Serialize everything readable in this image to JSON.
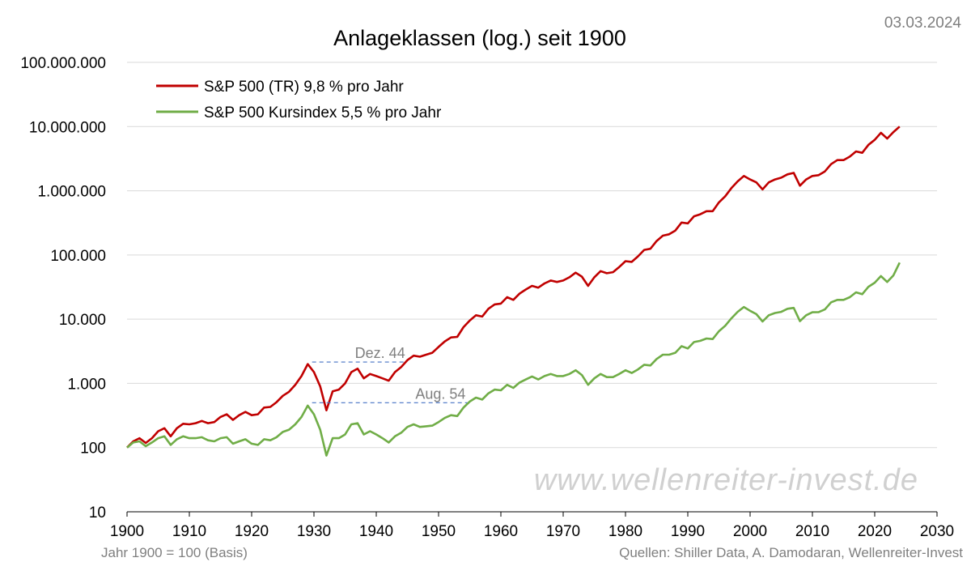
{
  "date": "03.03.2024",
  "footer": {
    "left": "Jahr 1900 = 100 (Basis)",
    "right": "Quellen: Shiller Data, A. Damodaran, Wellenreiter-Invest"
  },
  "watermark": "www.wellenreiter-invest.de",
  "chart_data": {
    "type": "line",
    "title": "Anlageklassen (log.) seit 1900",
    "xlabel": "",
    "ylabel": "",
    "yscale": "log",
    "xlim": [
      1900,
      2030
    ],
    "ylim": [
      10,
      100000000
    ],
    "grid": "horizontal",
    "legend_position": "top-left",
    "x_ticks": [
      1900,
      1910,
      1920,
      1930,
      1940,
      1950,
      1960,
      1970,
      1980,
      1990,
      2000,
      2010,
      2020,
      2030
    ],
    "x_tick_labels": [
      "1900",
      "1910",
      "1920",
      "1930",
      "1940",
      "1950",
      "1960",
      "1970",
      "1980",
      "1990",
      "2000",
      "2010",
      "2020",
      "2030"
    ],
    "y_ticks": [
      10,
      100,
      1000,
      10000,
      100000,
      1000000,
      10000000,
      100000000
    ],
    "y_tick_labels": [
      "10",
      "100",
      "1.000",
      "10.000",
      "100.000",
      "1.000.000",
      "10.000.000",
      "100.000.000"
    ],
    "series": [
      {
        "name": "S&P 500 (TR) 9,8 % pro Jahr",
        "color": "#c00000",
        "points": [
          [
            1900,
            100
          ],
          [
            1901,
            125
          ],
          [
            1902,
            140
          ],
          [
            1903,
            118
          ],
          [
            1904,
            140
          ],
          [
            1905,
            180
          ],
          [
            1906,
            200
          ],
          [
            1907,
            150
          ],
          [
            1908,
            200
          ],
          [
            1909,
            235
          ],
          [
            1910,
            230
          ],
          [
            1911,
            240
          ],
          [
            1912,
            260
          ],
          [
            1913,
            240
          ],
          [
            1914,
            250
          ],
          [
            1915,
            300
          ],
          [
            1916,
            330
          ],
          [
            1917,
            270
          ],
          [
            1918,
            320
          ],
          [
            1919,
            360
          ],
          [
            1920,
            320
          ],
          [
            1921,
            330
          ],
          [
            1922,
            420
          ],
          [
            1923,
            430
          ],
          [
            1924,
            510
          ],
          [
            1925,
            640
          ],
          [
            1926,
            740
          ],
          [
            1927,
            950
          ],
          [
            1928,
            1300
          ],
          [
            1929,
            2000
          ],
          [
            1930,
            1500
          ],
          [
            1931,
            900
          ],
          [
            1932,
            380
          ],
          [
            1933,
            750
          ],
          [
            1934,
            800
          ],
          [
            1935,
            1000
          ],
          [
            1936,
            1500
          ],
          [
            1937,
            1700
          ],
          [
            1938,
            1200
          ],
          [
            1939,
            1400
          ],
          [
            1940,
            1300
          ],
          [
            1941,
            1200
          ],
          [
            1942,
            1100
          ],
          [
            1943,
            1500
          ],
          [
            1944,
            1800
          ],
          [
            1945,
            2300
          ],
          [
            1946,
            2700
          ],
          [
            1947,
            2600
          ],
          [
            1948,
            2800
          ],
          [
            1949,
            3000
          ],
          [
            1950,
            3700
          ],
          [
            1951,
            4500
          ],
          [
            1952,
            5200
          ],
          [
            1953,
            5300
          ],
          [
            1954,
            7500
          ],
          [
            1955,
            9500
          ],
          [
            1956,
            11500
          ],
          [
            1957,
            11000
          ],
          [
            1958,
            14500
          ],
          [
            1959,
            17000
          ],
          [
            1960,
            17500
          ],
          [
            1961,
            22000
          ],
          [
            1962,
            20000
          ],
          [
            1963,
            25000
          ],
          [
            1964,
            29000
          ],
          [
            1965,
            33000
          ],
          [
            1966,
            31000
          ],
          [
            1967,
            36000
          ],
          [
            1968,
            40000
          ],
          [
            1969,
            38000
          ],
          [
            1970,
            40000
          ],
          [
            1971,
            45000
          ],
          [
            1972,
            53000
          ],
          [
            1973,
            46000
          ],
          [
            1974,
            33000
          ],
          [
            1975,
            45000
          ],
          [
            1976,
            56000
          ],
          [
            1977,
            52000
          ],
          [
            1978,
            54000
          ],
          [
            1979,
            65000
          ],
          [
            1980,
            80000
          ],
          [
            1981,
            78000
          ],
          [
            1982,
            95000
          ],
          [
            1983,
            120000
          ],
          [
            1984,
            125000
          ],
          [
            1985,
            165000
          ],
          [
            1986,
            200000
          ],
          [
            1987,
            210000
          ],
          [
            1988,
            240000
          ],
          [
            1989,
            320000
          ],
          [
            1990,
            310000
          ],
          [
            1991,
            400000
          ],
          [
            1992,
            430000
          ],
          [
            1993,
            480000
          ],
          [
            1994,
            480000
          ],
          [
            1995,
            660000
          ],
          [
            1996,
            820000
          ],
          [
            1997,
            1100000
          ],
          [
            1998,
            1400000
          ],
          [
            1999,
            1700000
          ],
          [
            2000,
            1500000
          ],
          [
            2001,
            1350000
          ],
          [
            2002,
            1050000
          ],
          [
            2003,
            1350000
          ],
          [
            2004,
            1500000
          ],
          [
            2005,
            1600000
          ],
          [
            2006,
            1800000
          ],
          [
            2007,
            1900000
          ],
          [
            2008,
            1200000
          ],
          [
            2009,
            1500000
          ],
          [
            2010,
            1700000
          ],
          [
            2011,
            1750000
          ],
          [
            2012,
            2000000
          ],
          [
            2013,
            2600000
          ],
          [
            2014,
            3000000
          ],
          [
            2015,
            3000000
          ],
          [
            2016,
            3400000
          ],
          [
            2017,
            4100000
          ],
          [
            2018,
            3900000
          ],
          [
            2019,
            5200000
          ],
          [
            2020,
            6200000
          ],
          [
            2021,
            8000000
          ],
          [
            2022,
            6500000
          ],
          [
            2023,
            8200000
          ],
          [
            2024,
            10000000
          ]
        ]
      },
      {
        "name": "S&P 500 Kursindex 5,5 % pro Jahr",
        "color": "#70ad47",
        "points": [
          [
            1900,
            100
          ],
          [
            1901,
            120
          ],
          [
            1902,
            125
          ],
          [
            1903,
            105
          ],
          [
            1904,
            120
          ],
          [
            1905,
            140
          ],
          [
            1906,
            150
          ],
          [
            1907,
            110
          ],
          [
            1908,
            135
          ],
          [
            1909,
            150
          ],
          [
            1910,
            140
          ],
          [
            1911,
            140
          ],
          [
            1912,
            145
          ],
          [
            1913,
            130
          ],
          [
            1914,
            125
          ],
          [
            1915,
            140
          ],
          [
            1916,
            145
          ],
          [
            1917,
            115
          ],
          [
            1918,
            125
          ],
          [
            1919,
            135
          ],
          [
            1920,
            115
          ],
          [
            1921,
            110
          ],
          [
            1922,
            135
          ],
          [
            1923,
            130
          ],
          [
            1924,
            145
          ],
          [
            1925,
            175
          ],
          [
            1926,
            190
          ],
          [
            1927,
            230
          ],
          [
            1928,
            300
          ],
          [
            1929,
            450
          ],
          [
            1930,
            330
          ],
          [
            1931,
            190
          ],
          [
            1932,
            75
          ],
          [
            1933,
            140
          ],
          [
            1934,
            140
          ],
          [
            1935,
            160
          ],
          [
            1936,
            230
          ],
          [
            1937,
            240
          ],
          [
            1938,
            160
          ],
          [
            1939,
            180
          ],
          [
            1940,
            160
          ],
          [
            1941,
            140
          ],
          [
            1942,
            120
          ],
          [
            1943,
            150
          ],
          [
            1944,
            170
          ],
          [
            1945,
            210
          ],
          [
            1946,
            230
          ],
          [
            1947,
            210
          ],
          [
            1948,
            215
          ],
          [
            1949,
            220
          ],
          [
            1950,
            250
          ],
          [
            1951,
            290
          ],
          [
            1952,
            320
          ],
          [
            1953,
            310
          ],
          [
            1954,
            420
          ],
          [
            1955,
            520
          ],
          [
            1956,
            600
          ],
          [
            1957,
            560
          ],
          [
            1958,
            700
          ],
          [
            1959,
            800
          ],
          [
            1960,
            780
          ],
          [
            1961,
            950
          ],
          [
            1962,
            850
          ],
          [
            1963,
            1030
          ],
          [
            1964,
            1150
          ],
          [
            1965,
            1280
          ],
          [
            1966,
            1150
          ],
          [
            1967,
            1300
          ],
          [
            1968,
            1400
          ],
          [
            1969,
            1300
          ],
          [
            1970,
            1300
          ],
          [
            1971,
            1400
          ],
          [
            1972,
            1600
          ],
          [
            1973,
            1350
          ],
          [
            1974,
            950
          ],
          [
            1975,
            1200
          ],
          [
            1976,
            1400
          ],
          [
            1977,
            1250
          ],
          [
            1978,
            1250
          ],
          [
            1979,
            1400
          ],
          [
            1980,
            1600
          ],
          [
            1981,
            1450
          ],
          [
            1982,
            1650
          ],
          [
            1983,
            1950
          ],
          [
            1984,
            1900
          ],
          [
            1985,
            2400
          ],
          [
            1986,
            2800
          ],
          [
            1987,
            2800
          ],
          [
            1988,
            3000
          ],
          [
            1989,
            3800
          ],
          [
            1990,
            3500
          ],
          [
            1991,
            4400
          ],
          [
            1992,
            4600
          ],
          [
            1993,
            5000
          ],
          [
            1994,
            4900
          ],
          [
            1995,
            6500
          ],
          [
            1996,
            7900
          ],
          [
            1997,
            10300
          ],
          [
            1998,
            13000
          ],
          [
            1999,
            15500
          ],
          [
            2000,
            13500
          ],
          [
            2001,
            12000
          ],
          [
            2002,
            9200
          ],
          [
            2003,
            11500
          ],
          [
            2004,
            12500
          ],
          [
            2005,
            13000
          ],
          [
            2006,
            14500
          ],
          [
            2007,
            15000
          ],
          [
            2008,
            9300
          ],
          [
            2009,
            11500
          ],
          [
            2010,
            12800
          ],
          [
            2011,
            12900
          ],
          [
            2012,
            14200
          ],
          [
            2013,
            18300
          ],
          [
            2014,
            20000
          ],
          [
            2015,
            20000
          ],
          [
            2016,
            22000
          ],
          [
            2017,
            26200
          ],
          [
            2018,
            24500
          ],
          [
            2019,
            32000
          ],
          [
            2020,
            37000
          ],
          [
            2021,
            47000
          ],
          [
            2022,
            38000
          ],
          [
            2023,
            48000
          ],
          [
            2024,
            76000
          ]
        ]
      }
    ],
    "annotations": [
      {
        "text": "Dez. 44",
        "x_from": 1929.7,
        "x_to": 1944.9,
        "y": 2150
      },
      {
        "text": "Aug. 54",
        "x_from": 1929.7,
        "x_to": 1954.6,
        "y": 500
      }
    ]
  }
}
